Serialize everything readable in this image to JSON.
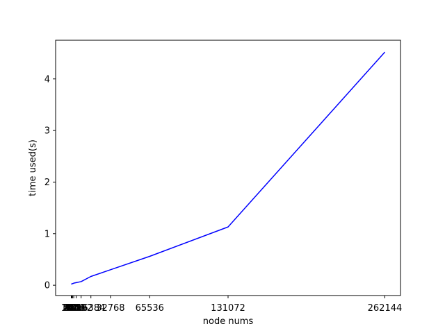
{
  "chart_data": {
    "type": "line",
    "title": "",
    "xlabel": "node nums",
    "ylabel": "time used(s)",
    "x": [
      4,
      8,
      16,
      32,
      64,
      128,
      256,
      512,
      1024,
      2048,
      4096,
      8192,
      16384,
      32768,
      65536,
      131072,
      262144
    ],
    "x_ticks": [
      "1",
      "2",
      "4",
      "8",
      "16",
      "32",
      "64",
      "128",
      "256",
      "512",
      "1024",
      "2048",
      "4096",
      "8192",
      "16384",
      "32768",
      "65536",
      "131072",
      "262144"
    ],
    "x_ticks_values": [
      1,
      2,
      4,
      8,
      16,
      32,
      64,
      128,
      256,
      512,
      1024,
      2048,
      4096,
      8192,
      16384,
      32768,
      65536,
      131072,
      262144
    ],
    "xlim": [
      -13107,
      275251
    ],
    "ylim": [
      -0.2,
      4.75
    ],
    "y_ticks": [
      0,
      1,
      2,
      3,
      4
    ],
    "grid": false,
    "series": [
      {
        "color": "#0000ff",
        "values": [
          0.02,
          0.02,
          0.02,
          0.02,
          0.02,
          0.02,
          0.02,
          0.03,
          0.03,
          0.04,
          0.05,
          0.07,
          0.17,
          0.3,
          0.56,
          1.13,
          4.52
        ]
      }
    ]
  }
}
